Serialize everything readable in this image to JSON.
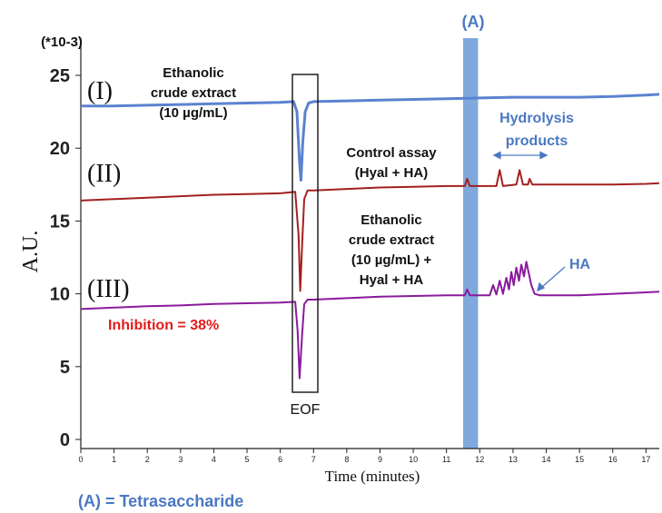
{
  "chart_data": {
    "type": "line",
    "xlabel": "Time (minutes)",
    "ylabel": "A.U.",
    "y_multiplier_label": "(*10-3)",
    "xlim": [
      0,
      17.4
    ],
    "ylim": [
      0,
      26
    ],
    "x_ticks": [
      0,
      1,
      2,
      3,
      4,
      5,
      6,
      7,
      8,
      9,
      10,
      11,
      12,
      13,
      14,
      15,
      16,
      17
    ],
    "y_ticks": [
      0,
      5,
      10,
      15,
      20,
      25
    ],
    "grid": false,
    "highlight_band": {
      "label": "(A)",
      "from": 11.5,
      "to": 11.95
    },
    "series": [
      {
        "name": "(I)",
        "description_lines": [
          "Ethanolic",
          "crude extract",
          "(10 µg/mL)"
        ],
        "color": "#5b82d0",
        "points": [
          [
            0,
            22.9
          ],
          [
            1,
            22.9
          ],
          [
            2,
            22.95
          ],
          [
            3,
            23.0
          ],
          [
            4,
            23.05
          ],
          [
            5,
            23.1
          ],
          [
            6,
            23.15
          ],
          [
            6.4,
            23.2
          ],
          [
            6.5,
            22.5
          ],
          [
            6.58,
            19.0
          ],
          [
            6.62,
            17.8
          ],
          [
            6.68,
            20.5
          ],
          [
            6.75,
            22.5
          ],
          [
            6.85,
            23.1
          ],
          [
            7,
            23.2
          ],
          [
            8,
            23.25
          ],
          [
            9,
            23.3
          ],
          [
            10,
            23.35
          ],
          [
            11,
            23.4
          ],
          [
            12,
            23.45
          ],
          [
            13,
            23.5
          ],
          [
            14,
            23.5
          ],
          [
            15,
            23.5
          ],
          [
            16,
            23.55
          ],
          [
            17,
            23.65
          ],
          [
            17.4,
            23.7
          ]
        ]
      },
      {
        "name": "(II)",
        "description_lines": [
          "Control assay",
          "(Hyal + HA)"
        ],
        "color": "#a32020",
        "points": [
          [
            0,
            16.4
          ],
          [
            1,
            16.5
          ],
          [
            2,
            16.6
          ],
          [
            3,
            16.7
          ],
          [
            4,
            16.8
          ],
          [
            5,
            16.85
          ],
          [
            6,
            16.9
          ],
          [
            6.45,
            17.0
          ],
          [
            6.55,
            14.0
          ],
          [
            6.6,
            10.2
          ],
          [
            6.66,
            13.5
          ],
          [
            6.72,
            16.5
          ],
          [
            6.82,
            17.1
          ],
          [
            7,
            17.1
          ],
          [
            8,
            17.2
          ],
          [
            9,
            17.3
          ],
          [
            10,
            17.35
          ],
          [
            11,
            17.4
          ],
          [
            11.55,
            17.4
          ],
          [
            11.62,
            17.9
          ],
          [
            11.7,
            17.4
          ],
          [
            12.5,
            17.4
          ],
          [
            12.6,
            18.5
          ],
          [
            12.7,
            17.4
          ],
          [
            13.1,
            17.5
          ],
          [
            13.2,
            18.5
          ],
          [
            13.3,
            17.5
          ],
          [
            13.45,
            17.5
          ],
          [
            13.5,
            17.9
          ],
          [
            13.58,
            17.5
          ],
          [
            14,
            17.5
          ],
          [
            15,
            17.5
          ],
          [
            16,
            17.5
          ],
          [
            17,
            17.55
          ],
          [
            17.4,
            17.6
          ]
        ]
      },
      {
        "name": "(III)",
        "description_lines": [
          "Ethanolic",
          "crude extract",
          "(10 µg/mL) +",
          "Hyal + HA"
        ],
        "color": "#8a1a9c",
        "points": [
          [
            0,
            8.95
          ],
          [
            1,
            9.05
          ],
          [
            2,
            9.15
          ],
          [
            3,
            9.2
          ],
          [
            4,
            9.3
          ],
          [
            5,
            9.35
          ],
          [
            6,
            9.4
          ],
          [
            6.45,
            9.45
          ],
          [
            6.52,
            7.5
          ],
          [
            6.58,
            4.2
          ],
          [
            6.65,
            7.0
          ],
          [
            6.72,
            9.3
          ],
          [
            6.82,
            9.6
          ],
          [
            7,
            9.6
          ],
          [
            8,
            9.7
          ],
          [
            9,
            9.8
          ],
          [
            10,
            9.85
          ],
          [
            11,
            9.9
          ],
          [
            11.55,
            9.9
          ],
          [
            11.62,
            10.3
          ],
          [
            11.7,
            9.9
          ],
          [
            12.3,
            9.9
          ],
          [
            12.4,
            10.6
          ],
          [
            12.5,
            9.95
          ],
          [
            12.6,
            10.9
          ],
          [
            12.7,
            10.0
          ],
          [
            12.8,
            11.1
          ],
          [
            12.88,
            10.3
          ],
          [
            12.95,
            11.5
          ],
          [
            13.02,
            10.6
          ],
          [
            13.1,
            11.8
          ],
          [
            13.18,
            10.9
          ],
          [
            13.25,
            12.0
          ],
          [
            13.33,
            11.2
          ],
          [
            13.4,
            12.2
          ],
          [
            13.55,
            10.6
          ],
          [
            13.65,
            10.0
          ],
          [
            13.8,
            9.9
          ],
          [
            14,
            9.9
          ],
          [
            15,
            9.9
          ],
          [
            16,
            10.0
          ],
          [
            17,
            10.1
          ],
          [
            17.4,
            10.15
          ]
        ]
      }
    ],
    "annotations": {
      "eof_label": "EOF",
      "eof_range": [
        6.3,
        7.0
      ],
      "hydrolysis_lines": [
        "Hydrolysis",
        "products"
      ],
      "hydrolysis_range": [
        12.4,
        13.8
      ],
      "ha_label": "HA",
      "inhibition": "Inhibition = 38%",
      "tetrasaccharide": "(A) = Tetrasaccharide"
    },
    "colors": {
      "band": "#7fa9dc",
      "blue_text": "#4a78c2",
      "red_text": "#e11b1b",
      "axis": "#222222"
    }
  }
}
